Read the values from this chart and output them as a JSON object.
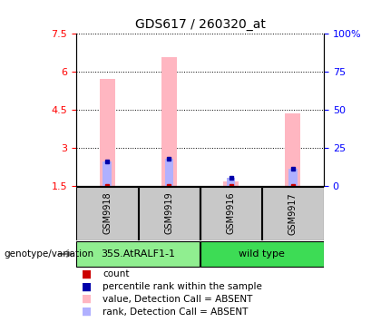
{
  "title": "GDS617 / 260320_at",
  "samples": [
    "GSM9918",
    "GSM9919",
    "GSM9916",
    "GSM9917"
  ],
  "group_labels": [
    "35S.AtRALF1-1",
    "wild type"
  ],
  "group_color_1": "#90EE90",
  "group_color_2": "#3DDC55",
  "ylim_left": [
    1.5,
    7.5
  ],
  "yticks_left": [
    1.5,
    3.0,
    4.5,
    6.0,
    7.5
  ],
  "ytick_labels_left": [
    "1.5",
    "3",
    "4.5",
    "6",
    "7.5"
  ],
  "ylim_right": [
    0,
    100
  ],
  "yticks_right": [
    0,
    25,
    50,
    75,
    100
  ],
  "ytick_labels_right": [
    "0",
    "25",
    "50",
    "75",
    "100%"
  ],
  "bar_width": 0.25,
  "value_absent": [
    5.72,
    6.55,
    1.67,
    4.35
  ],
  "rank_absent_pct": [
    16.0,
    17.5,
    5.5,
    11.5
  ],
  "color_value_absent": "#FFB6C1",
  "color_rank_absent": "#B0B0FF",
  "color_count": "#CC0000",
  "color_percentile": "#0000AA",
  "legend_items": [
    {
      "label": "count",
      "color": "#CC0000"
    },
    {
      "label": "percentile rank within the sample",
      "color": "#0000AA"
    },
    {
      "label": "value, Detection Call = ABSENT",
      "color": "#FFB6C1"
    },
    {
      "label": "rank, Detection Call = ABSENT",
      "color": "#B0B0FF"
    }
  ],
  "genotype_label": "genotype/variation",
  "sample_label_fontsize": 7,
  "title_fontsize": 10,
  "legend_fontsize": 7.5,
  "axis_fontsize": 8
}
